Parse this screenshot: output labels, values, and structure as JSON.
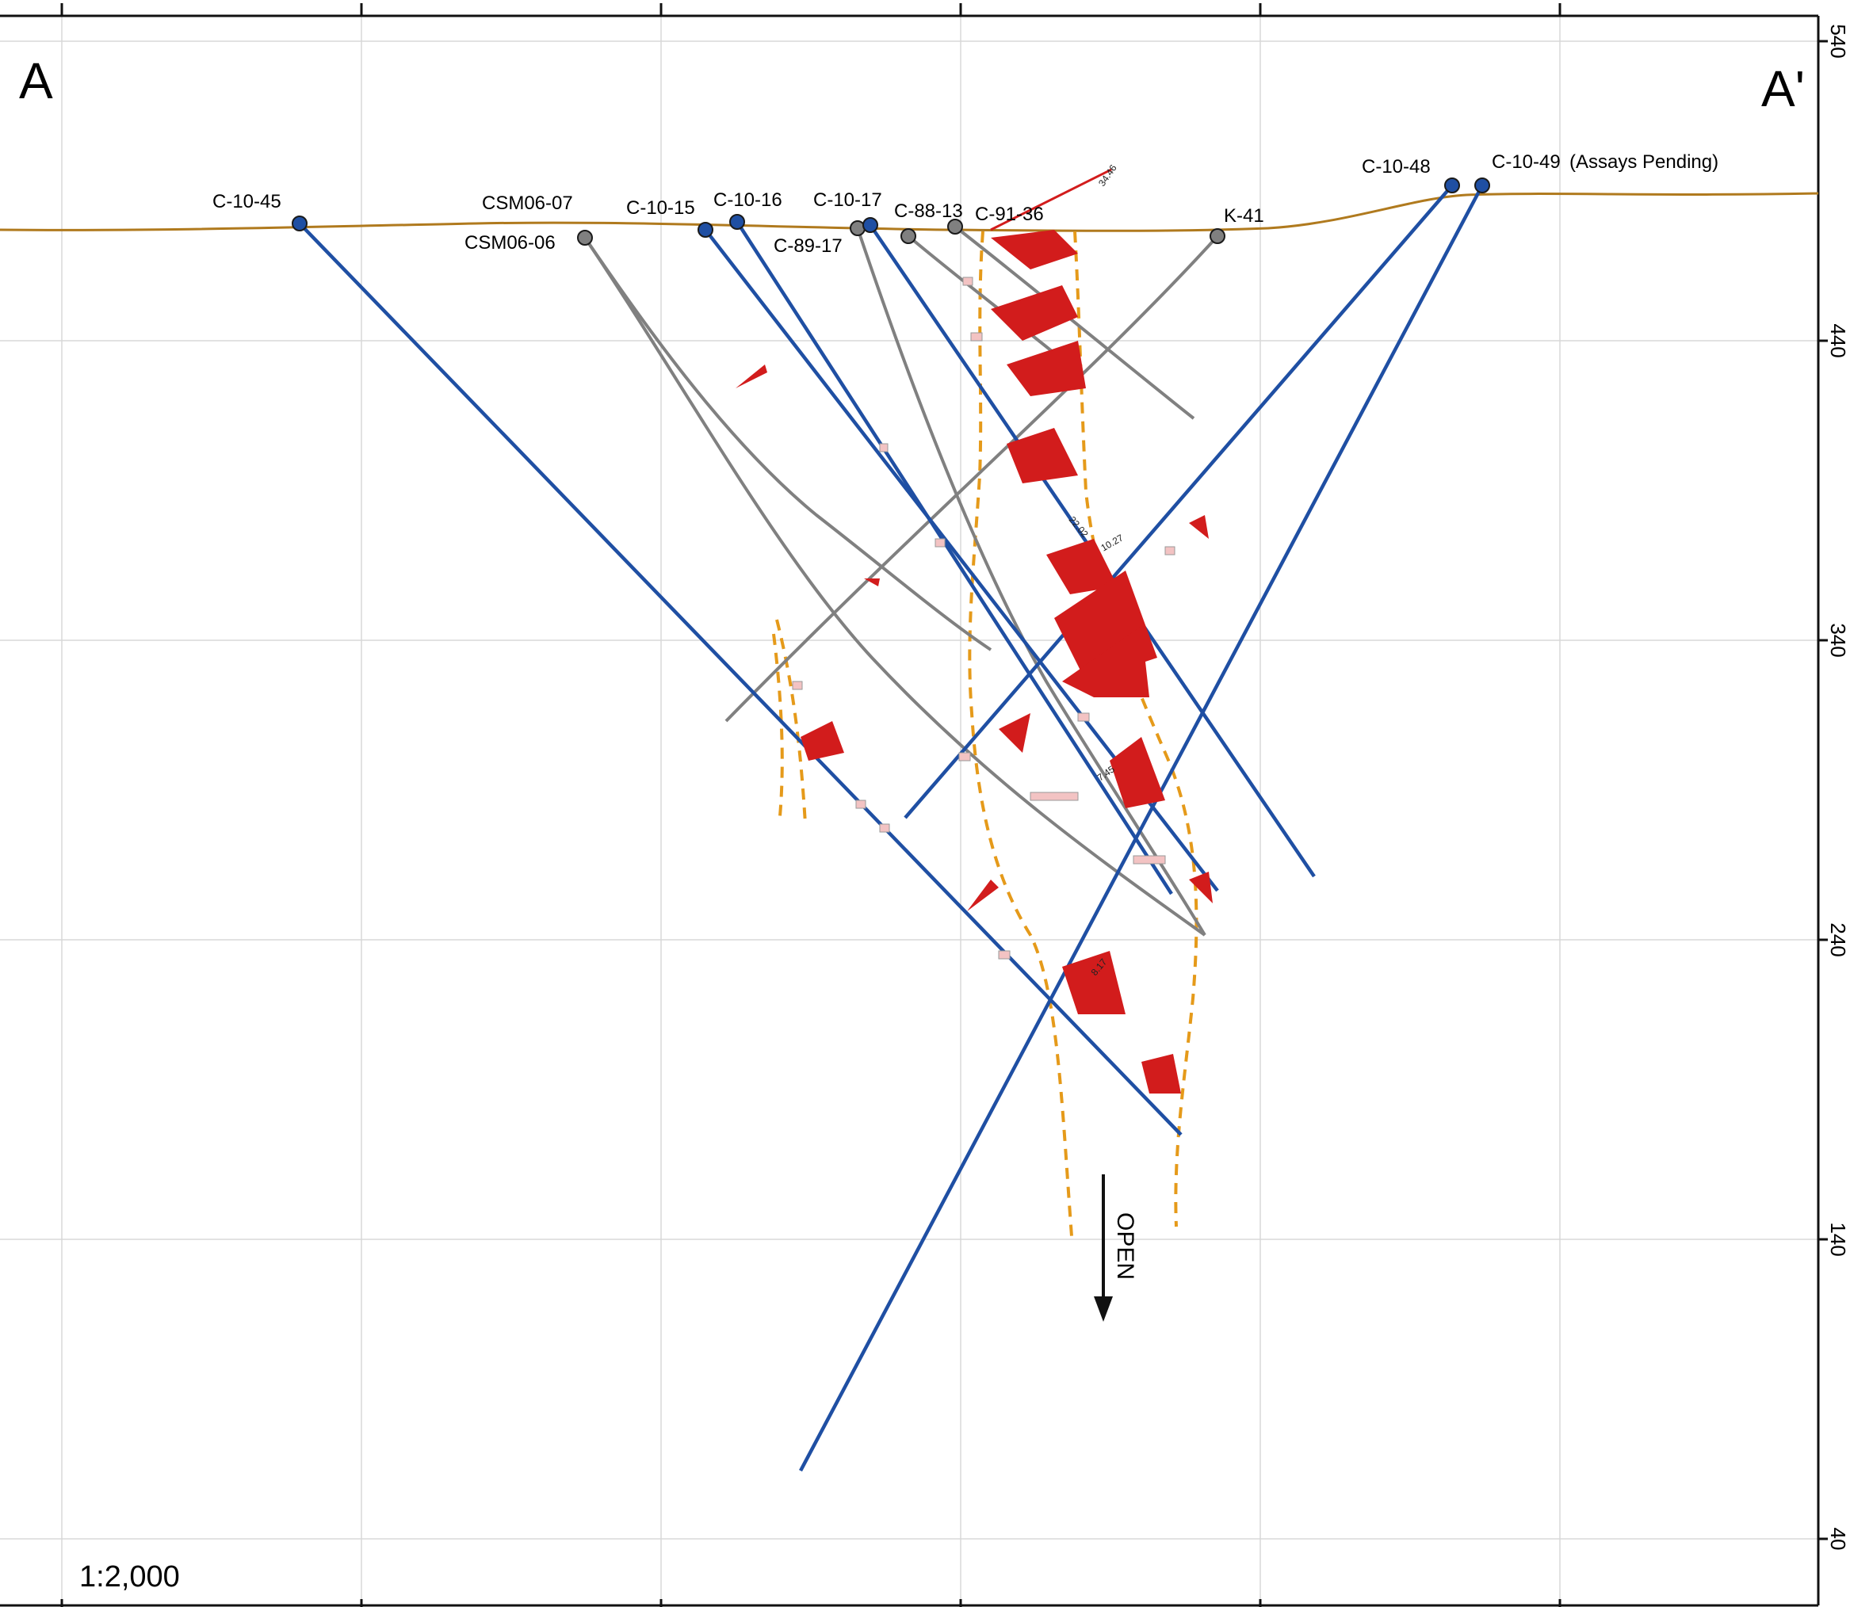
{
  "section": {
    "left_label": "A",
    "right_label": "A'",
    "scale": "1:2,000",
    "open_label": "OPEN"
  },
  "elevation_ticks": [
    "540",
    "440",
    "340",
    "240",
    "140",
    "40"
  ],
  "holes": [
    {
      "id": "C-10-45",
      "label": "C-10-45",
      "type": "blue"
    },
    {
      "id": "CSM06-07",
      "label": "CSM06-07",
      "type": "gray"
    },
    {
      "id": "CSM06-06",
      "label": "CSM06-06",
      "type": "gray"
    },
    {
      "id": "C-10-15",
      "label": "C-10-15",
      "type": "blue"
    },
    {
      "id": "C-10-16",
      "label": "C-10-16",
      "type": "blue"
    },
    {
      "id": "C-10-17",
      "label": "C-10-17",
      "type": "blue"
    },
    {
      "id": "C-89-17",
      "label": "C-89-17",
      "type": "gray"
    },
    {
      "id": "C-88-13",
      "label": "C-88-13",
      "type": "gray"
    },
    {
      "id": "C-91-36",
      "label": "C-91-36",
      "type": "gray"
    },
    {
      "id": "K-41",
      "label": "K-41",
      "type": "gray"
    },
    {
      "id": "C-10-48",
      "label": "C-10-48",
      "type": "blue"
    },
    {
      "id": "C-10-49",
      "label": "C-10-49",
      "type": "blue",
      "note": "(Assays Pending)"
    }
  ],
  "assay_values": [
    "34.46",
    "22.02",
    "10.27",
    "7.45",
    "8.17"
  ],
  "colors": {
    "blue_hole": "#1f4fa3",
    "gray_hole": "#808080",
    "topography": "#b07a1e",
    "zone_outline": "#e59a1a",
    "assay_high": "#d21c1c",
    "assay_low": "#f3c3c3",
    "grid": "#d8d8d8"
  }
}
